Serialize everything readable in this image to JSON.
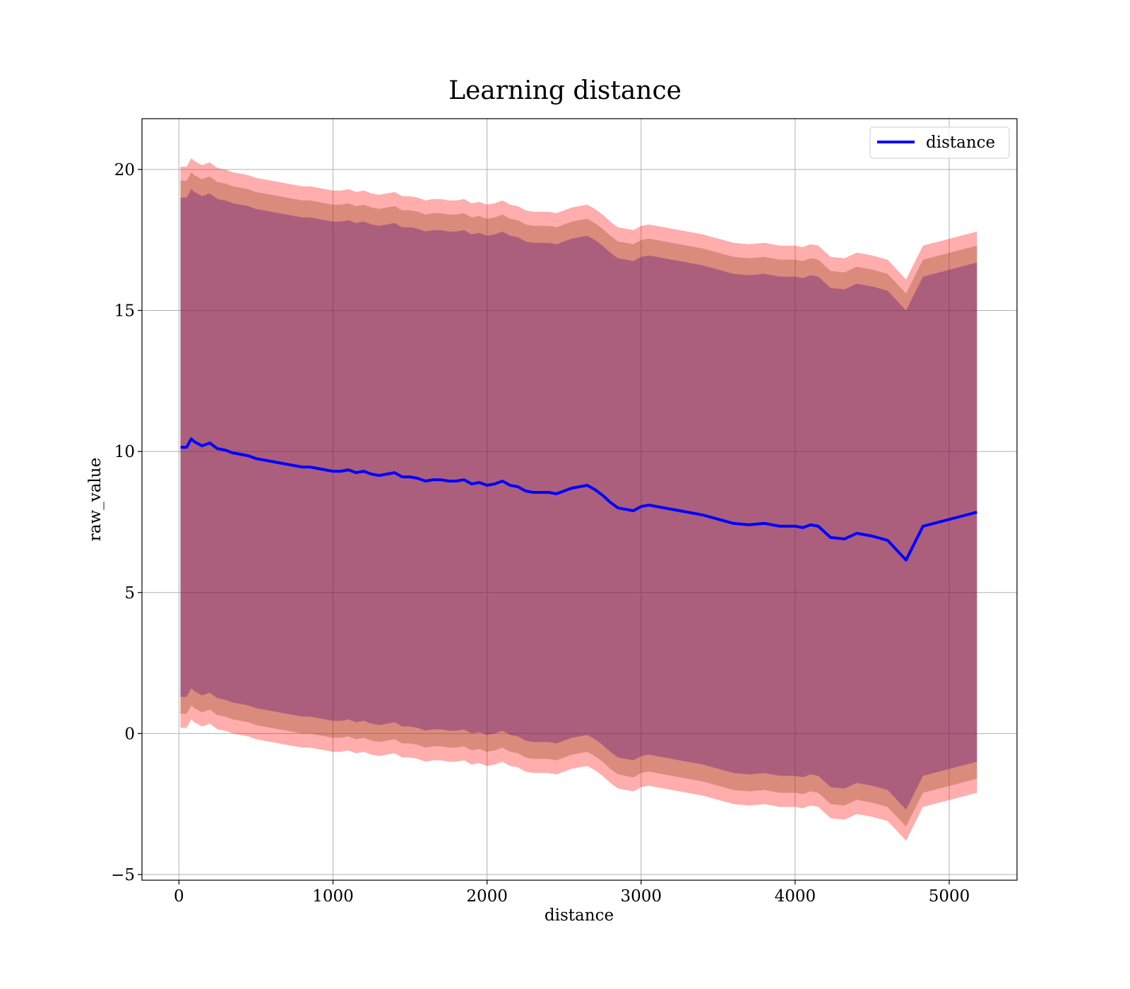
{
  "chart_data": {
    "type": "line",
    "title": "Learning distance",
    "xlabel": "distance",
    "ylabel": "raw_value",
    "xlim": [
      -240,
      5440
    ],
    "ylim": [
      -5.2,
      21.8
    ],
    "x_ticks": [
      0,
      1000,
      2000,
      3000,
      4000,
      5000
    ],
    "y_ticks": [
      -5,
      0,
      5,
      10,
      15,
      20
    ],
    "grid": true,
    "legend_position": "top-right",
    "colors": {
      "line": "#0000ff",
      "band_outer": "#ff0000",
      "band_middle": "#8b4513",
      "band_inner": "#4b0082"
    },
    "band_opacity": {
      "outer": 0.32,
      "middle": 0.32,
      "inner": 0.32
    },
    "series": [
      {
        "name": "distance",
        "x": [
          10,
          50,
          80,
          100,
          150,
          200,
          250,
          300,
          350,
          400,
          450,
          500,
          550,
          600,
          650,
          700,
          750,
          800,
          850,
          900,
          950,
          1000,
          1050,
          1100,
          1150,
          1200,
          1250,
          1300,
          1350,
          1400,
          1450,
          1500,
          1550,
          1600,
          1650,
          1700,
          1750,
          1800,
          1850,
          1900,
          1950,
          2000,
          2050,
          2100,
          2150,
          2200,
          2250,
          2300,
          2350,
          2400,
          2450,
          2500,
          2550,
          2600,
          2650,
          2700,
          2750,
          2800,
          2850,
          2900,
          2950,
          3000,
          3050,
          3100,
          3200,
          3300,
          3400,
          3500,
          3600,
          3700,
          3800,
          3900,
          4000,
          4050,
          4100,
          4150,
          4200,
          4230,
          4320,
          4400,
          4500,
          4600,
          4720,
          4830,
          5180
        ],
        "y": [
          10.15,
          10.15,
          10.45,
          10.35,
          10.2,
          10.3,
          10.1,
          10.05,
          9.95,
          9.9,
          9.85,
          9.75,
          9.7,
          9.65,
          9.6,
          9.55,
          9.5,
          9.45,
          9.45,
          9.4,
          9.35,
          9.3,
          9.3,
          9.35,
          9.25,
          9.3,
          9.2,
          9.15,
          9.2,
          9.25,
          9.1,
          9.1,
          9.05,
          8.95,
          9.0,
          9.0,
          8.95,
          8.95,
          9.0,
          8.85,
          8.9,
          8.8,
          8.85,
          8.95,
          8.8,
          8.75,
          8.6,
          8.55,
          8.55,
          8.55,
          8.5,
          8.6,
          8.7,
          8.75,
          8.8,
          8.65,
          8.45,
          8.2,
          8.0,
          7.95,
          7.9,
          8.05,
          8.1,
          8.05,
          7.95,
          7.85,
          7.75,
          7.6,
          7.45,
          7.4,
          7.45,
          7.35,
          7.35,
          7.3,
          7.4,
          7.35,
          7.1,
          6.95,
          6.9,
          7.1,
          7.0,
          6.85,
          6.15,
          7.35,
          7.85
        ],
        "bands": [
          {
            "level": "outer",
            "half_width": [
              9.95,
              9.95,
              9.95,
              9.95,
              9.95,
              9.95,
              9.95,
              9.95,
              9.95,
              9.95,
              9.95,
              9.95,
              9.95,
              9.95,
              9.95,
              9.95,
              9.95,
              9.95,
              9.95,
              9.95,
              9.95,
              9.95,
              9.95,
              9.95,
              9.95,
              9.95,
              9.95,
              9.95,
              9.95,
              9.95,
              9.95,
              9.95,
              9.95,
              9.95,
              9.95,
              9.95,
              9.95,
              9.95,
              9.95,
              9.95,
              9.95,
              9.95,
              9.95,
              9.95,
              9.95,
              9.95,
              9.95,
              9.95,
              9.95,
              9.95,
              9.95,
              9.95,
              9.95,
              9.95,
              9.95,
              9.95,
              9.95,
              9.95,
              9.95,
              9.95,
              9.95,
              9.95,
              9.95,
              9.95,
              9.95,
              9.95,
              9.95,
              9.95,
              9.95,
              9.95,
              9.95,
              9.95,
              9.95,
              9.95,
              9.95,
              9.95,
              9.95,
              9.95,
              9.95,
              9.95,
              9.95,
              9.95,
              9.95,
              9.95,
              9.95
            ]
          },
          {
            "level": "middle",
            "half_width": [
              9.45,
              9.45,
              9.45,
              9.45,
              9.45,
              9.45,
              9.45,
              9.45,
              9.45,
              9.45,
              9.45,
              9.45,
              9.45,
              9.45,
              9.45,
              9.45,
              9.45,
              9.45,
              9.45,
              9.45,
              9.45,
              9.45,
              9.45,
              9.45,
              9.45,
              9.45,
              9.45,
              9.45,
              9.45,
              9.45,
              9.45,
              9.45,
              9.45,
              9.45,
              9.45,
              9.45,
              9.45,
              9.45,
              9.45,
              9.45,
              9.45,
              9.45,
              9.45,
              9.45,
              9.45,
              9.45,
              9.45,
              9.45,
              9.45,
              9.45,
              9.45,
              9.45,
              9.45,
              9.45,
              9.45,
              9.45,
              9.45,
              9.45,
              9.45,
              9.45,
              9.45,
              9.45,
              9.45,
              9.45,
              9.45,
              9.45,
              9.45,
              9.45,
              9.45,
              9.45,
              9.45,
              9.45,
              9.45,
              9.45,
              9.45,
              9.45,
              9.45,
              9.45,
              9.45,
              9.45,
              9.45,
              9.45,
              9.45,
              9.45,
              9.45
            ]
          },
          {
            "level": "inner",
            "half_width": [
              8.85,
              8.85,
              8.85,
              8.85,
              8.85,
              8.85,
              8.85,
              8.85,
              8.85,
              8.85,
              8.85,
              8.85,
              8.85,
              8.85,
              8.85,
              8.85,
              8.85,
              8.85,
              8.85,
              8.85,
              8.85,
              8.85,
              8.85,
              8.85,
              8.85,
              8.85,
              8.85,
              8.85,
              8.85,
              8.85,
              8.85,
              8.85,
              8.85,
              8.85,
              8.85,
              8.85,
              8.85,
              8.85,
              8.85,
              8.85,
              8.85,
              8.85,
              8.85,
              8.85,
              8.85,
              8.85,
              8.85,
              8.85,
              8.85,
              8.85,
              8.85,
              8.85,
              8.85,
              8.85,
              8.85,
              8.85,
              8.85,
              8.85,
              8.85,
              8.85,
              8.85,
              8.85,
              8.85,
              8.85,
              8.85,
              8.85,
              8.85,
              8.85,
              8.85,
              8.85,
              8.85,
              8.85,
              8.85,
              8.85,
              8.85,
              8.85,
              8.85,
              8.85,
              8.85,
              8.85,
              8.85,
              8.85,
              8.85,
              8.85,
              8.85
            ]
          }
        ]
      }
    ]
  }
}
